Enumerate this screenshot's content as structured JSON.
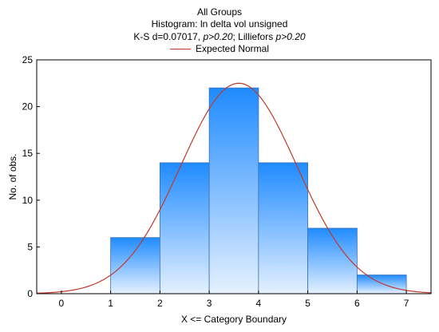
{
  "chart_data": {
    "type": "bar",
    "title": "All Groups",
    "subtitle": "Histogram: ln delta vol unsigned",
    "stats": {
      "prefix": "K-S d=0.07017, ",
      "p1": "p>0.20",
      "mid": "; Lilliefors ",
      "p2": "p>0.20"
    },
    "legend": {
      "entries": [
        "Expected Normal"
      ],
      "placement": "top-center"
    },
    "xlabel": "X <= Category Boundary",
    "ylabel": "No. of obs.",
    "xlim": [
      -0.5,
      7.5
    ],
    "ylim": [
      0,
      25
    ],
    "xticks": [
      "0",
      "1",
      "2",
      "3",
      "4",
      "5",
      "6",
      "7"
    ],
    "yticks": [
      "0",
      "5",
      "10",
      "15",
      "20",
      "25"
    ],
    "grid": false,
    "bins": [
      {
        "from": 1,
        "to": 2,
        "count": 6
      },
      {
        "from": 2,
        "to": 3,
        "count": 14
      },
      {
        "from": 3,
        "to": 4,
        "count": 22
      },
      {
        "from": 4,
        "to": 5,
        "count": 14
      },
      {
        "from": 5,
        "to": 6,
        "count": 7
      },
      {
        "from": 6,
        "to": 7,
        "count": 2
      }
    ],
    "normal_curve": {
      "mean": 3.6,
      "peak": 22.5,
      "sd": 1.18
    },
    "colors": {
      "bar_top": "#1f8bff",
      "bar_bottom": "#e6f1ff",
      "bar_stroke": "#3a6fb8",
      "curve": "#c0392b",
      "axis": "#000000"
    }
  }
}
